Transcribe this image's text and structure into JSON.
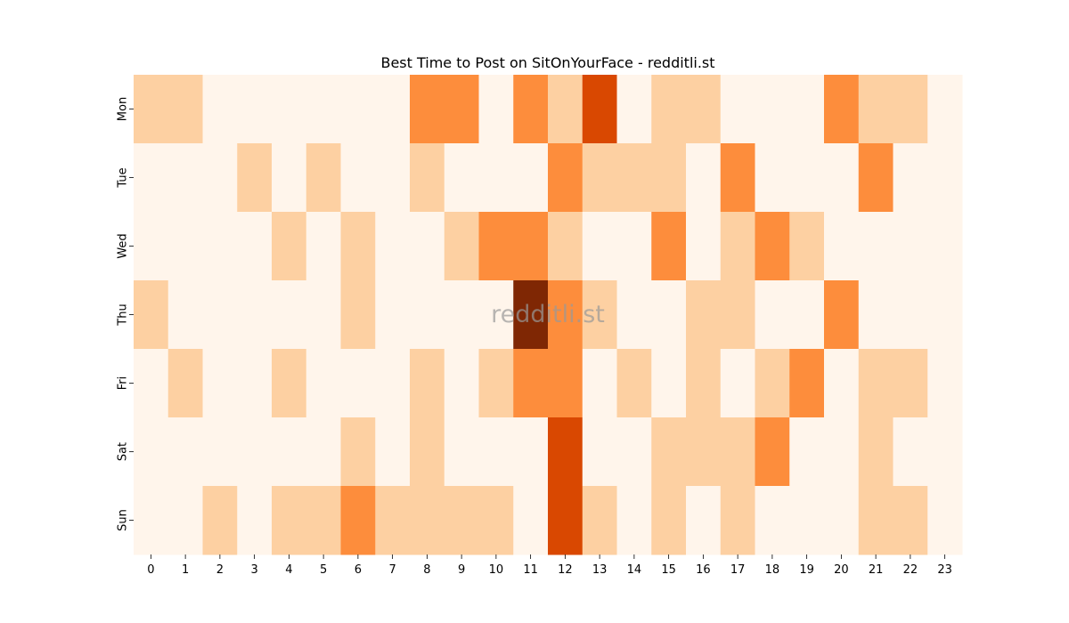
{
  "chart_data": {
    "type": "heatmap",
    "title": "Best Time to Post on SitOnYourFace - redditli.st",
    "watermark": "redditli.st",
    "x_categories": [
      "0",
      "1",
      "2",
      "3",
      "4",
      "5",
      "6",
      "7",
      "8",
      "9",
      "10",
      "11",
      "12",
      "13",
      "14",
      "15",
      "16",
      "17",
      "18",
      "19",
      "20",
      "21",
      "22",
      "23"
    ],
    "y_categories": [
      "Mon",
      "Tue",
      "Wed",
      "Thu",
      "Fri",
      "Sat",
      "Sun"
    ],
    "values": [
      [
        1,
        1,
        0,
        0,
        0,
        0,
        0,
        0,
        2,
        2,
        0,
        2,
        1,
        3,
        0,
        1,
        1,
        0,
        0,
        0,
        2,
        1,
        1,
        0
      ],
      [
        0,
        0,
        0,
        1,
        0,
        1,
        0,
        0,
        1,
        0,
        0,
        0,
        2,
        1,
        1,
        1,
        0,
        2,
        0,
        0,
        0,
        2,
        0,
        0
      ],
      [
        0,
        0,
        0,
        0,
        1,
        0,
        1,
        0,
        0,
        1,
        2,
        2,
        1,
        0,
        0,
        2,
        0,
        1,
        2,
        1,
        0,
        0,
        0,
        0
      ],
      [
        1,
        0,
        0,
        0,
        0,
        0,
        1,
        0,
        0,
        0,
        0,
        4,
        2,
        1,
        0,
        0,
        1,
        1,
        0,
        0,
        2,
        0,
        0,
        0
      ],
      [
        0,
        1,
        0,
        0,
        1,
        0,
        0,
        0,
        1,
        0,
        1,
        2,
        2,
        0,
        1,
        0,
        1,
        0,
        1,
        2,
        0,
        1,
        1,
        0
      ],
      [
        0,
        0,
        0,
        0,
        0,
        0,
        1,
        0,
        1,
        0,
        0,
        0,
        3,
        0,
        0,
        1,
        1,
        1,
        2,
        0,
        0,
        1,
        0,
        0
      ],
      [
        0,
        0,
        1,
        0,
        1,
        1,
        2,
        1,
        1,
        1,
        1,
        0,
        3,
        1,
        0,
        1,
        0,
        1,
        0,
        0,
        0,
        1,
        1,
        0
      ]
    ],
    "colormap": "Oranges",
    "level_colors": [
      "#fff5eb",
      "#fdd0a2",
      "#fd8d3c",
      "#d94801",
      "#7f2704"
    ],
    "colorbar": false,
    "grid": false
  }
}
